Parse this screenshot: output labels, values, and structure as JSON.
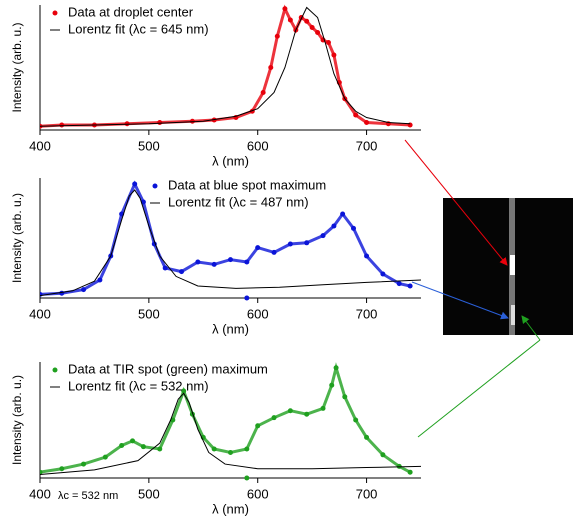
{
  "chart_data": [
    {
      "type": "line",
      "xlabel": "λ (nm)",
      "ylabel": "Intensity (arb. u.)",
      "legend": "upper left",
      "xlim": [
        400,
        750
      ],
      "ylim": [
        0,
        1
      ],
      "xticks": [
        400,
        500,
        600,
        700
      ],
      "series": [
        {
          "name": "Data at droplet center",
          "type": "scatter",
          "color": "#e8000b",
          "x": [
            400,
            420,
            450,
            480,
            510,
            540,
            560,
            580,
            595,
            605,
            612,
            618,
            625,
            630,
            635,
            640,
            645,
            650,
            655,
            660,
            665,
            670,
            675,
            680,
            690,
            700,
            720,
            740
          ],
          "values": [
            0.03,
            0.04,
            0.04,
            0.05,
            0.06,
            0.07,
            0.08,
            0.1,
            0.15,
            0.3,
            0.5,
            0.75,
            0.97,
            0.88,
            0.8,
            0.9,
            0.87,
            0.82,
            0.78,
            0.72,
            0.7,
            0.6,
            0.38,
            0.25,
            0.12,
            0.06,
            0.05,
            0.04
          ]
        },
        {
          "name": "Lorentz fit (λc = 645 nm)",
          "type": "line",
          "color": "#000000",
          "x": [
            400,
            450,
            500,
            550,
            580,
            600,
            615,
            625,
            635,
            645,
            655,
            662,
            670,
            680,
            690,
            700,
            720,
            740
          ],
          "values": [
            0.03,
            0.04,
            0.05,
            0.07,
            0.11,
            0.17,
            0.3,
            0.5,
            0.8,
            0.98,
            0.9,
            0.7,
            0.45,
            0.25,
            0.15,
            0.1,
            0.06,
            0.05
          ]
        }
      ]
    },
    {
      "type": "line",
      "xlabel": "λ (nm)",
      "ylabel": "Intensity (arb. u.)",
      "legend": "upper center",
      "xlim": [
        400,
        750
      ],
      "ylim": [
        0,
        1
      ],
      "xticks": [
        400,
        500,
        600,
        700
      ],
      "series": [
        {
          "name": "Data at blue spot maximum",
          "type": "scatter",
          "color": "#0a14d8",
          "x": [
            400,
            420,
            440,
            455,
            465,
            475,
            487,
            495,
            505,
            515,
            530,
            545,
            560,
            575,
            590,
            600,
            615,
            630,
            645,
            660,
            670,
            678,
            688,
            700,
            715,
            730,
            740
          ],
          "values": [
            0.03,
            0.04,
            0.07,
            0.15,
            0.35,
            0.7,
            0.95,
            0.8,
            0.45,
            0.25,
            0.22,
            0.3,
            0.28,
            0.32,
            0.3,
            0.42,
            0.38,
            0.45,
            0.46,
            0.52,
            0.6,
            0.7,
            0.58,
            0.35,
            0.2,
            0.12,
            0.1
          ]
        },
        {
          "name": "Lorentz fit (λc = 487 nm)",
          "type": "line",
          "color": "#000000",
          "x": [
            400,
            430,
            450,
            465,
            475,
            482,
            487,
            492,
            500,
            510,
            525,
            545,
            580,
            620,
            660,
            700,
            750
          ],
          "values": [
            0.02,
            0.06,
            0.14,
            0.35,
            0.65,
            0.85,
            0.9,
            0.83,
            0.6,
            0.35,
            0.18,
            0.1,
            0.08,
            0.09,
            0.11,
            0.13,
            0.15
          ]
        },
        {
          "name": null,
          "type": "scatter",
          "color": "#0a14d8",
          "x": [
            590
          ],
          "values": [
            0.0
          ]
        }
      ]
    },
    {
      "type": "line",
      "xlabel": "λ (nm)",
      "ylabel": "Intensity (arb. u.)",
      "legend": "upper left",
      "annotation": "λc = 532 nm",
      "xlim": [
        400,
        750
      ],
      "ylim": [
        0,
        1
      ],
      "xticks": [
        400,
        500,
        600,
        700
      ],
      "series": [
        {
          "name": "Data at TIR spot (green) maximum",
          "type": "scatter",
          "color": "#1fa01f",
          "x": [
            400,
            420,
            440,
            460,
            475,
            485,
            495,
            510,
            522,
            532,
            540,
            550,
            560,
            575,
            590,
            600,
            615,
            630,
            645,
            660,
            668,
            672,
            680,
            690,
            700,
            715,
            730,
            740
          ],
          "values": [
            0.05,
            0.08,
            0.12,
            0.18,
            0.28,
            0.32,
            0.27,
            0.25,
            0.5,
            0.75,
            0.55,
            0.35,
            0.25,
            0.22,
            0.25,
            0.45,
            0.52,
            0.58,
            0.55,
            0.6,
            0.8,
            0.95,
            0.7,
            0.5,
            0.35,
            0.2,
            0.1,
            0.05
          ]
        },
        {
          "name": "Lorentz fit (λc = 532 nm)",
          "type": "line",
          "color": "#000000",
          "x": [
            400,
            450,
            490,
            510,
            520,
            527,
            532,
            537,
            545,
            555,
            570,
            600,
            650,
            700,
            750
          ],
          "values": [
            0.03,
            0.07,
            0.15,
            0.3,
            0.5,
            0.68,
            0.73,
            0.65,
            0.42,
            0.22,
            0.12,
            0.08,
            0.08,
            0.09,
            0.1
          ]
        },
        {
          "name": null,
          "type": "scatter",
          "color": "#1fa01f",
          "x": [
            590
          ],
          "values": [
            0.0
          ]
        }
      ]
    }
  ]
}
